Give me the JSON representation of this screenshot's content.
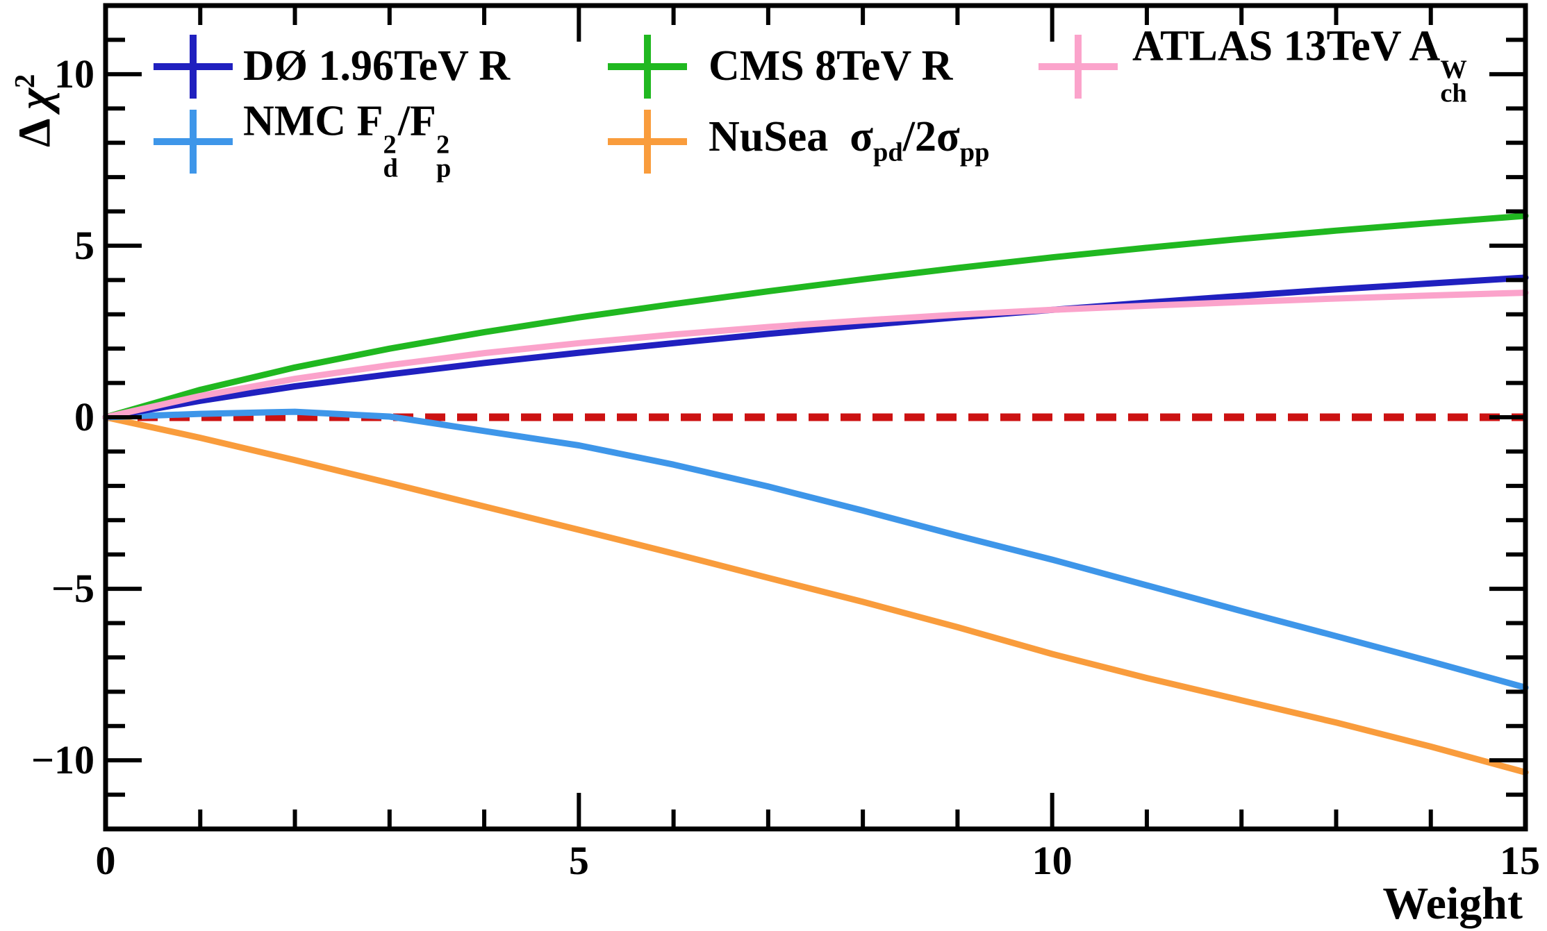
{
  "chart_data": {
    "type": "line",
    "title": "",
    "xlabel": "Weight",
    "ylabel": "Δ χ²",
    "xlim": [
      0,
      15
    ],
    "ylim": [
      -12,
      12
    ],
    "grid": false,
    "legend_position": "top-inside",
    "background": "#ffffff",
    "frame_color": "#000000",
    "x": [
      0,
      1,
      2,
      3,
      4,
      5,
      6,
      7,
      8,
      9,
      10,
      11,
      12,
      13,
      14,
      15
    ],
    "series": [
      {
        "id": "dzero",
        "name": "DØ 1.96TeV R",
        "color": "#2020bf",
        "values": [
          0,
          0.48,
          0.9,
          1.25,
          1.58,
          1.88,
          2.16,
          2.43,
          2.68,
          2.91,
          3.13,
          3.34,
          3.54,
          3.73,
          3.9,
          4.07
        ]
      },
      {
        "id": "nmc",
        "name": "NMC F²d/F²p",
        "color": "#3e96e9",
        "values": [
          0,
          0.1,
          0.16,
          0.02,
          -0.4,
          -0.82,
          -1.38,
          -2.02,
          -2.72,
          -3.45,
          -4.15,
          -4.9,
          -5.65,
          -6.38,
          -7.12,
          -7.88
        ]
      },
      {
        "id": "cms",
        "name": "CMS 8TeV R",
        "color": "#20b820",
        "values": [
          0,
          0.8,
          1.45,
          2.0,
          2.48,
          2.91,
          3.3,
          3.67,
          4.02,
          4.35,
          4.66,
          4.94,
          5.2,
          5.44,
          5.66,
          5.87
        ]
      },
      {
        "id": "nusea",
        "name": "NuSea σpd/2σpp",
        "color": "#f99c3c",
        "values": [
          0,
          -0.6,
          -1.25,
          -1.92,
          -2.6,
          -3.28,
          -3.97,
          -4.68,
          -5.38,
          -6.12,
          -6.9,
          -7.6,
          -8.25,
          -8.9,
          -9.6,
          -10.35
        ]
      },
      {
        "id": "atlas",
        "name": "ATLAS 13TeV A(W,ch)",
        "color": "#fba3cb",
        "values": [
          0,
          0.62,
          1.12,
          1.52,
          1.87,
          2.16,
          2.41,
          2.63,
          2.82,
          2.99,
          3.13,
          3.25,
          3.36,
          3.46,
          3.55,
          3.63
        ]
      }
    ],
    "reference_line": {
      "y": 0,
      "color": "#cc1212",
      "style": "dashed"
    },
    "axes": {
      "x_ticks": [
        {
          "v": 0,
          "label": "0"
        },
        {
          "v": 5,
          "label": "5"
        },
        {
          "v": 10,
          "label": "10"
        },
        {
          "v": 15,
          "label": "15"
        }
      ],
      "y_ticks": [
        {
          "v": 10,
          "label": "10"
        },
        {
          "v": 5,
          "label": "5"
        },
        {
          "v": 0,
          "label": "0"
        },
        {
          "v": -5,
          "label": "−5"
        },
        {
          "v": -10,
          "label": "−10"
        }
      ],
      "x_minor_step": 1,
      "y_minor_step": 1
    }
  },
  "y_title_segments": [
    {
      "t": "Δ "
    },
    {
      "t": "χ",
      "i": true
    },
    {
      "sup": "2"
    }
  ],
  "legend": {
    "entries": [
      {
        "series": "dzero",
        "row": 0,
        "col": 0,
        "segments": [
          {
            "t": "DØ 1.96TeV R"
          }
        ]
      },
      {
        "series": "cms",
        "row": 0,
        "col": 1,
        "segments": [
          {
            "t": "CMS 8TeV R"
          }
        ]
      },
      {
        "series": "atlas",
        "row": 0,
        "col": 2,
        "segments": [
          {
            "t": "ATLAS 13TeV A"
          },
          {
            "sup": "W",
            "sub": "ch"
          }
        ]
      },
      {
        "series": "nmc",
        "row": 1,
        "col": 0,
        "segments": [
          {
            "t": "NMC F"
          },
          {
            "sup": "2",
            "sub": "d"
          },
          {
            "t": "/F"
          },
          {
            "sup": "2",
            "sub": "p"
          }
        ]
      },
      {
        "series": "nusea",
        "row": 1,
        "col": 1,
        "segments": [
          {
            "t": "NuSea  "
          },
          {
            "t": "σ"
          },
          {
            "sub": "pd"
          },
          {
            "t": "/2"
          },
          {
            "t": "σ"
          },
          {
            "sub": "pp"
          }
        ]
      }
    ]
  }
}
